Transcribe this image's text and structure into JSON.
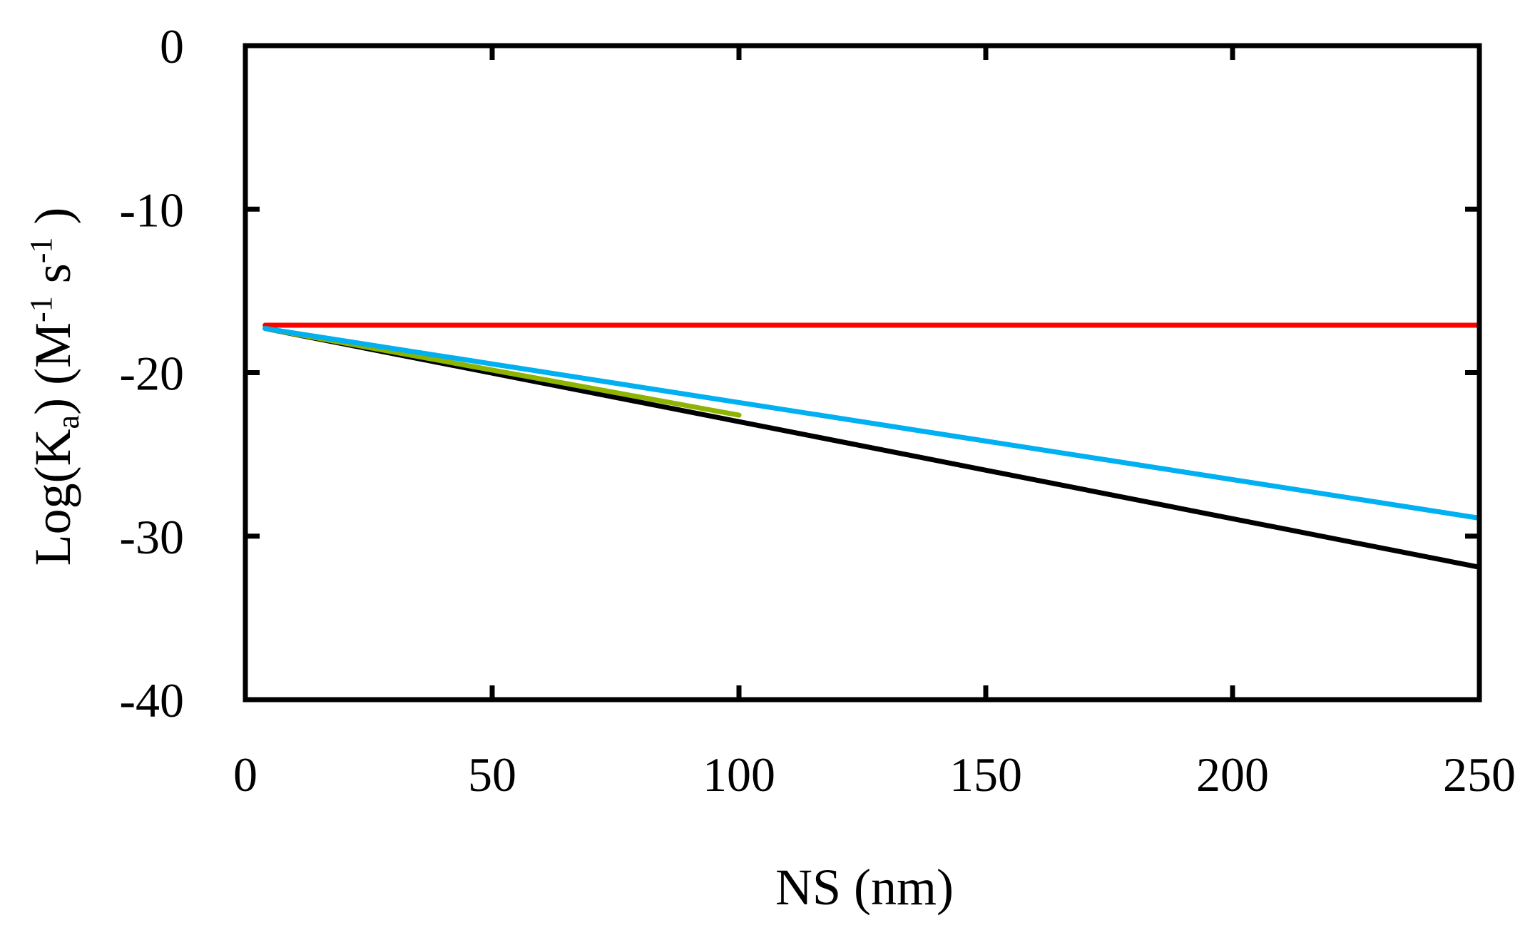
{
  "chart_data": {
    "type": "line",
    "xlabel": "NS (nm)",
    "ylabel": {
      "prefix": "Log(K",
      "sub": "a",
      "mid": ") (M",
      "sup1": "-1",
      "mid2": " s",
      "sup2": "-1",
      "suffix": " )"
    },
    "xlim": [
      0,
      250
    ],
    "ylim": [
      -40,
      0
    ],
    "xticks": [
      0,
      50,
      100,
      150,
      200,
      250
    ],
    "yticks": [
      0,
      -10,
      -20,
      -30,
      -40
    ],
    "grid": false,
    "series": [
      {
        "color": "#ff0000",
        "x": [
          4,
          250
        ],
        "y": [
          -17.1,
          -17.1
        ]
      },
      {
        "color": "#000000",
        "x": [
          4,
          250
        ],
        "y": [
          -17.3,
          -31.9
        ]
      },
      {
        "color": "#8cb400",
        "x": [
          4,
          100
        ],
        "y": [
          -17.3,
          -22.6
        ]
      },
      {
        "color": "#00b0f0",
        "x": [
          4,
          250
        ],
        "y": [
          -17.3,
          -28.9
        ]
      }
    ]
  }
}
